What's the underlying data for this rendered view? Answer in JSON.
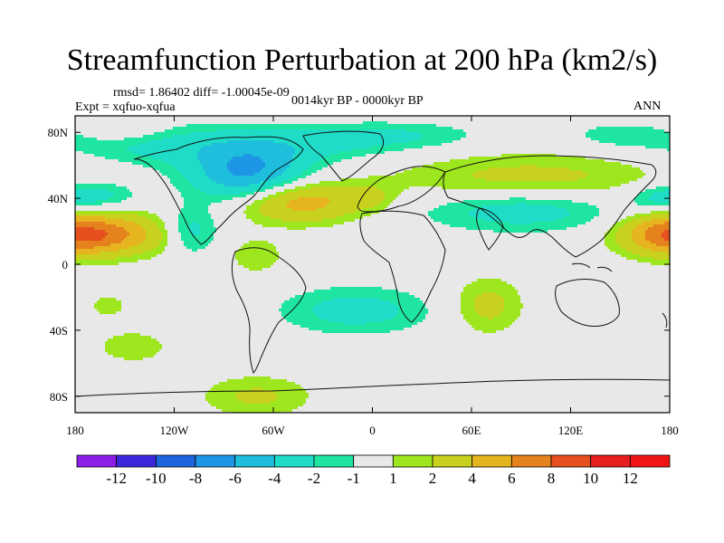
{
  "figure": {
    "title": "Streamfunction Perturbation at 200 hPa (km2/s)",
    "stats_line": "rmsd= 1.86402 diff= -1.00045e-09",
    "left_subtitle": "Expt = xqfuo-xqfua",
    "center_subtitle": "0014kyr BP - 0000kyr BP",
    "right_subtitle": "ANN"
  },
  "chart_data": {
    "type": "heatmap",
    "title": "Streamfunction Perturbation at 200 hPa (km2/s)",
    "projection": "cylindrical equidistant, global",
    "xlim": [
      -180,
      180
    ],
    "ylim": [
      -90,
      90
    ],
    "x_ticks": [
      {
        "value": -180,
        "label": "180"
      },
      {
        "value": -120,
        "label": "120W"
      },
      {
        "value": -60,
        "label": "60W"
      },
      {
        "value": 0,
        "label": "0"
      },
      {
        "value": 60,
        "label": "60E"
      },
      {
        "value": 120,
        "label": "120E"
      },
      {
        "value": 180,
        "label": "180"
      }
    ],
    "y_ticks": [
      {
        "value": 80,
        "label": "80N"
      },
      {
        "value": 40,
        "label": "40N"
      },
      {
        "value": 0,
        "label": "0"
      },
      {
        "value": -40,
        "label": "40S"
      },
      {
        "value": -80,
        "label": "80S"
      }
    ],
    "levels": [
      -12,
      -10,
      -8,
      -6,
      -4,
      -2,
      -1,
      1,
      2,
      4,
      6,
      8,
      10,
      12
    ],
    "colorbar_labels": [
      "-12",
      "-10",
      "-8",
      "-6",
      "-4",
      "-2",
      "-1",
      "1",
      "2",
      "4",
      "6",
      "8",
      "10",
      "12"
    ],
    "colors": [
      "#8c1ee8",
      "#3c28dc",
      "#1e64dc",
      "#1e96e6",
      "#1ebedc",
      "#1edcc8",
      "#1ee6a0",
      "#e8e8e8",
      "#9ee61e",
      "#c8d21e",
      "#e6b41e",
      "#e6821e",
      "#e6501e",
      "#e61e1e",
      "#f01414"
    ],
    "anomalies": [
      {
        "lon": -75,
        "lat": 55,
        "value": -6.5,
        "sx": 25,
        "sy": 12
      },
      {
        "lon": -130,
        "lat": 72,
        "value": -2.5,
        "sx": 40,
        "sy": 9
      },
      {
        "lon": -40,
        "lat": 73,
        "value": -2.2,
        "sx": 40,
        "sy": 8
      },
      {
        "lon": 20,
        "lat": 78,
        "value": -1.8,
        "sx": 35,
        "sy": 6
      },
      {
        "lon": 150,
        "lat": 78,
        "value": -1.5,
        "sx": 25,
        "sy": 6
      },
      {
        "lon": 90,
        "lat": 33,
        "value": -3.2,
        "sx": 42,
        "sy": 9
      },
      {
        "lon": -110,
        "lat": 20,
        "value": -3.2,
        "sx": 12,
        "sy": 10
      },
      {
        "lon": -165,
        "lat": 42,
        "value": -2.6,
        "sx": 16,
        "sy": 6
      },
      {
        "lon": 173,
        "lat": 40,
        "value": -2.2,
        "sx": 14,
        "sy": 6
      },
      {
        "lon": -10,
        "lat": -28,
        "value": -2.8,
        "sx": 32,
        "sy": 10
      },
      {
        "lon": 95,
        "lat": 52,
        "value": 2.6,
        "sx": 60,
        "sy": 11
      },
      {
        "lon": -45,
        "lat": 38,
        "value": 5.5,
        "sx": 26,
        "sy": 9
      },
      {
        "lon": -158,
        "lat": 18,
        "value": 5.2,
        "sx": 28,
        "sy": 9
      },
      {
        "lon": 178,
        "lat": 18,
        "value": 5.0,
        "sx": 20,
        "sy": 9
      },
      {
        "lon": 70,
        "lat": -25,
        "value": 2.6,
        "sx": 15,
        "sy": 12
      },
      {
        "lon": -70,
        "lat": -80,
        "value": 2.3,
        "sx": 24,
        "sy": 9
      },
      {
        "lon": -70,
        "lat": 5,
        "value": 1.8,
        "sx": 12,
        "sy": 8
      },
      {
        "lon": -160,
        "lat": -25,
        "value": 1.4,
        "sx": 10,
        "sy": 6
      },
      {
        "lon": -145,
        "lat": -50,
        "value": 1.6,
        "sx": 18,
        "sy": 8
      },
      {
        "lon": 0,
        "lat": 40,
        "value": 1.4,
        "sx": 10,
        "sy": 6
      },
      {
        "lon": -150,
        "lat": 80,
        "value": 1.5,
        "sx": 20,
        "sy": 5
      }
    ]
  }
}
